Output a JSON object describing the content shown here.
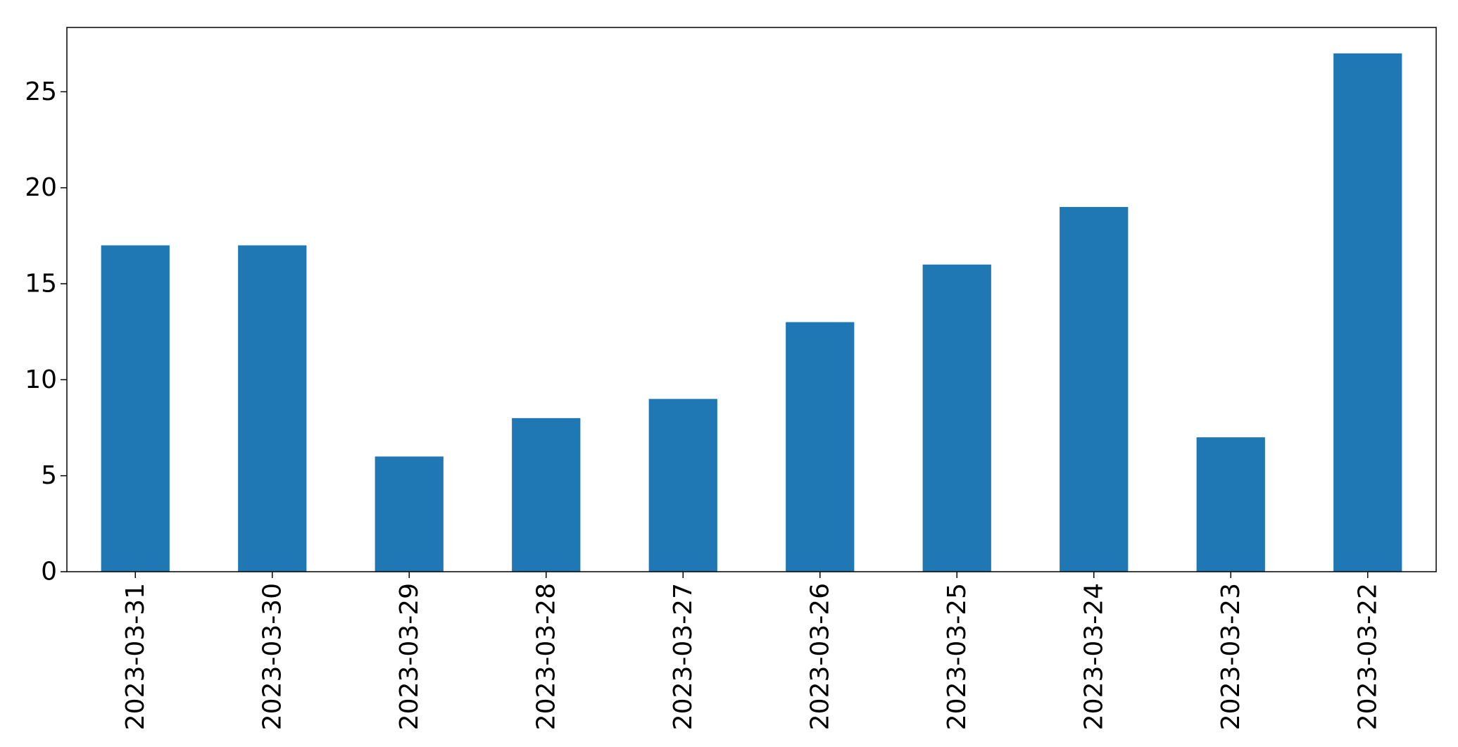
{
  "chart_data": {
    "type": "bar",
    "categories": [
      "2023-03-31",
      "2023-03-30",
      "2023-03-29",
      "2023-03-28",
      "2023-03-27",
      "2023-03-26",
      "2023-03-25",
      "2023-03-24",
      "2023-03-23",
      "2023-03-22"
    ],
    "values": [
      17,
      17,
      6,
      8,
      9,
      13,
      16,
      19,
      7,
      27
    ],
    "yticks": [
      0,
      5,
      10,
      15,
      20,
      25
    ],
    "ylim": [
      0,
      28.35
    ],
    "title": "",
    "xlabel": "",
    "ylabel": "",
    "grid": false,
    "legend": "none",
    "bar_color": "#1f77b4",
    "axis_color": "#000000"
  }
}
